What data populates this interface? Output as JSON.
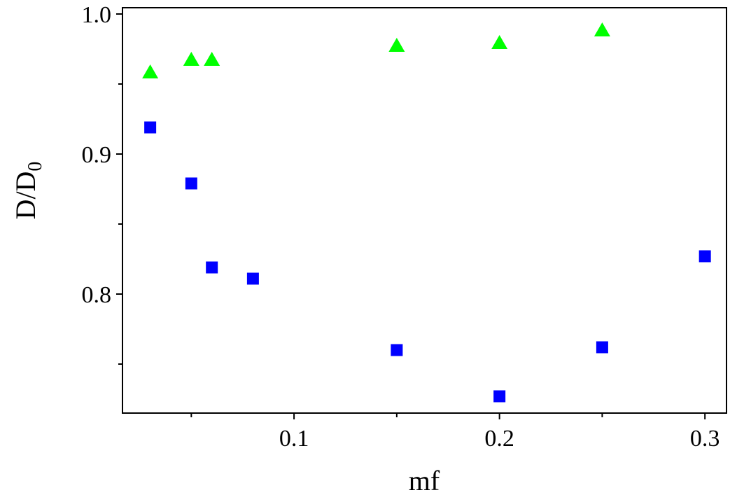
{
  "chart_data": {
    "type": "scatter",
    "xlabel": "mf",
    "ylabel": {
      "main": "D/D",
      "subscript": "0"
    },
    "xlim": [
      0.0165,
      0.3105
    ],
    "ylim": [
      0.715,
      1.0045
    ],
    "x_ticks": [
      {
        "value": 0.05,
        "label": ""
      },
      {
        "value": 0.1,
        "label": "0.1"
      },
      {
        "value": 0.15,
        "label": ""
      },
      {
        "value": 0.2,
        "label": "0.2"
      },
      {
        "value": 0.25,
        "label": ""
      },
      {
        "value": 0.3,
        "label": "0.3"
      }
    ],
    "y_ticks": [
      {
        "value": 0.75,
        "label": ""
      },
      {
        "value": 0.8,
        "label": "0.8"
      },
      {
        "value": 0.85,
        "label": ""
      },
      {
        "value": 0.9,
        "label": "0.9"
      },
      {
        "value": 0.95,
        "label": ""
      },
      {
        "value": 1.0,
        "label": "1.0"
      }
    ],
    "grid": false,
    "series": [
      {
        "marker": "triangle",
        "color": "#00ff00",
        "points": [
          {
            "x": 0.03,
            "y": 0.958
          },
          {
            "x": 0.05,
            "y": 0.967
          },
          {
            "x": 0.06,
            "y": 0.967
          },
          {
            "x": 0.15,
            "y": 0.977
          },
          {
            "x": 0.2,
            "y": 0.979
          },
          {
            "x": 0.25,
            "y": 0.988
          }
        ]
      },
      {
        "marker": "square",
        "color": "#0000ff",
        "points": [
          {
            "x": 0.03,
            "y": 0.919
          },
          {
            "x": 0.05,
            "y": 0.879
          },
          {
            "x": 0.06,
            "y": 0.819
          },
          {
            "x": 0.08,
            "y": 0.811
          },
          {
            "x": 0.15,
            "y": 0.76
          },
          {
            "x": 0.2,
            "y": 0.727
          },
          {
            "x": 0.25,
            "y": 0.762
          },
          {
            "x": 0.3,
            "y": 0.827
          }
        ]
      }
    ]
  }
}
